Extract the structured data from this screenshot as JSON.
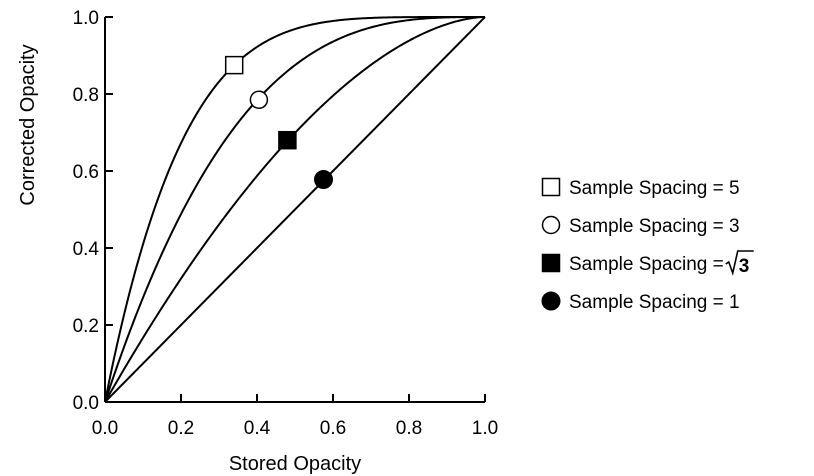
{
  "chart_data": {
    "type": "line",
    "xlabel": "Stored Opacity",
    "ylabel": "Corrected Opacity",
    "xlim": [
      0,
      1
    ],
    "ylim": [
      0,
      1
    ],
    "xticks": [
      "0.0",
      "0.2",
      "0.4",
      "0.6",
      "0.8",
      "1.0"
    ],
    "yticks": [
      "0.0",
      "0.2",
      "0.4",
      "0.6",
      "0.8",
      "1.0"
    ],
    "grid": false,
    "legend_position": "right",
    "series": [
      {
        "name": "Sample Spacing = 5",
        "ratio": 5,
        "marker": "open-square",
        "marker_point": [
          0.34,
          0.875
        ],
        "x": [
          0,
          0.05,
          0.1,
          0.15,
          0.2,
          0.25,
          0.3,
          0.35,
          0.4,
          0.5,
          0.6,
          0.7,
          0.8,
          0.9,
          1.0
        ],
        "y": [
          0,
          0.226,
          0.41,
          0.556,
          0.672,
          0.763,
          0.832,
          0.884,
          0.922,
          0.969,
          0.99,
          0.998,
          1.0,
          1.0,
          1.0
        ]
      },
      {
        "name": "Sample Spacing = 3",
        "ratio": 3,
        "marker": "open-circle",
        "marker_point": [
          0.405,
          0.785
        ],
        "x": [
          0,
          0.05,
          0.1,
          0.15,
          0.2,
          0.25,
          0.3,
          0.35,
          0.4,
          0.5,
          0.6,
          0.7,
          0.8,
          0.9,
          1.0
        ],
        "y": [
          0,
          0.143,
          0.271,
          0.386,
          0.488,
          0.578,
          0.657,
          0.725,
          0.784,
          0.875,
          0.936,
          0.973,
          0.992,
          0.999,
          1.0
        ]
      },
      {
        "name": "Sample Spacing = √3",
        "name_prefix": "Sample Spacing = ",
        "name_root": "3",
        "ratio": 1.732,
        "marker": "filled-square",
        "marker_point": [
          0.48,
          0.68
        ],
        "x": [
          0,
          0.05,
          0.1,
          0.15,
          0.2,
          0.25,
          0.3,
          0.35,
          0.4,
          0.5,
          0.6,
          0.7,
          0.8,
          0.9,
          1.0
        ],
        "y": [
          0,
          0.085,
          0.167,
          0.245,
          0.321,
          0.392,
          0.461,
          0.526,
          0.588,
          0.698,
          0.795,
          0.876,
          0.939,
          0.981,
          1.0
        ]
      },
      {
        "name": "Sample Spacing = 1",
        "ratio": 1,
        "marker": "filled-circle",
        "marker_point": [
          0.575,
          0.578
        ],
        "x": [
          0,
          1.0
        ],
        "y": [
          0,
          1.0
        ]
      }
    ]
  }
}
